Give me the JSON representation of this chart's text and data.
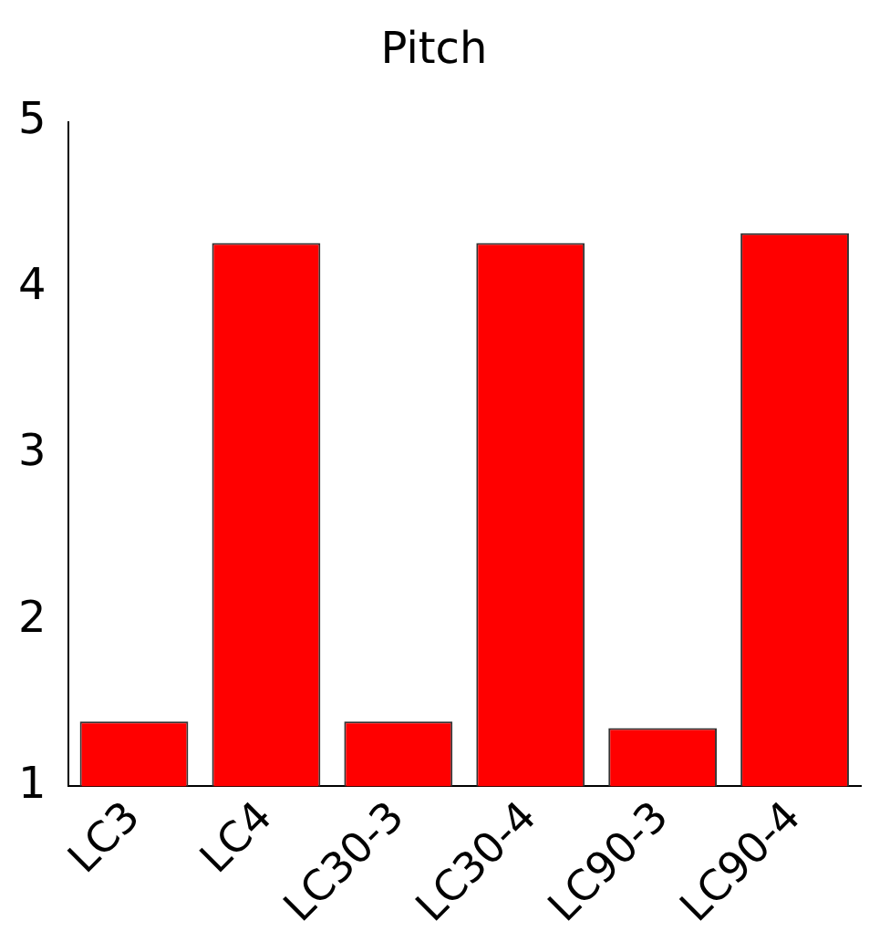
{
  "chart_data": {
    "type": "bar",
    "title": "Pitch",
    "categories": [
      "LC3",
      "LC4",
      "LC30-3",
      "LC30-4",
      "LC90-3",
      "LC90-4"
    ],
    "values": [
      1.39,
      4.27,
      1.39,
      4.27,
      1.35,
      4.33
    ],
    "color": "#ff0000",
    "ylim": [
      1,
      5
    ],
    "yticks": [
      1,
      2,
      3,
      4,
      5
    ],
    "grid": false,
    "legend": false
  }
}
